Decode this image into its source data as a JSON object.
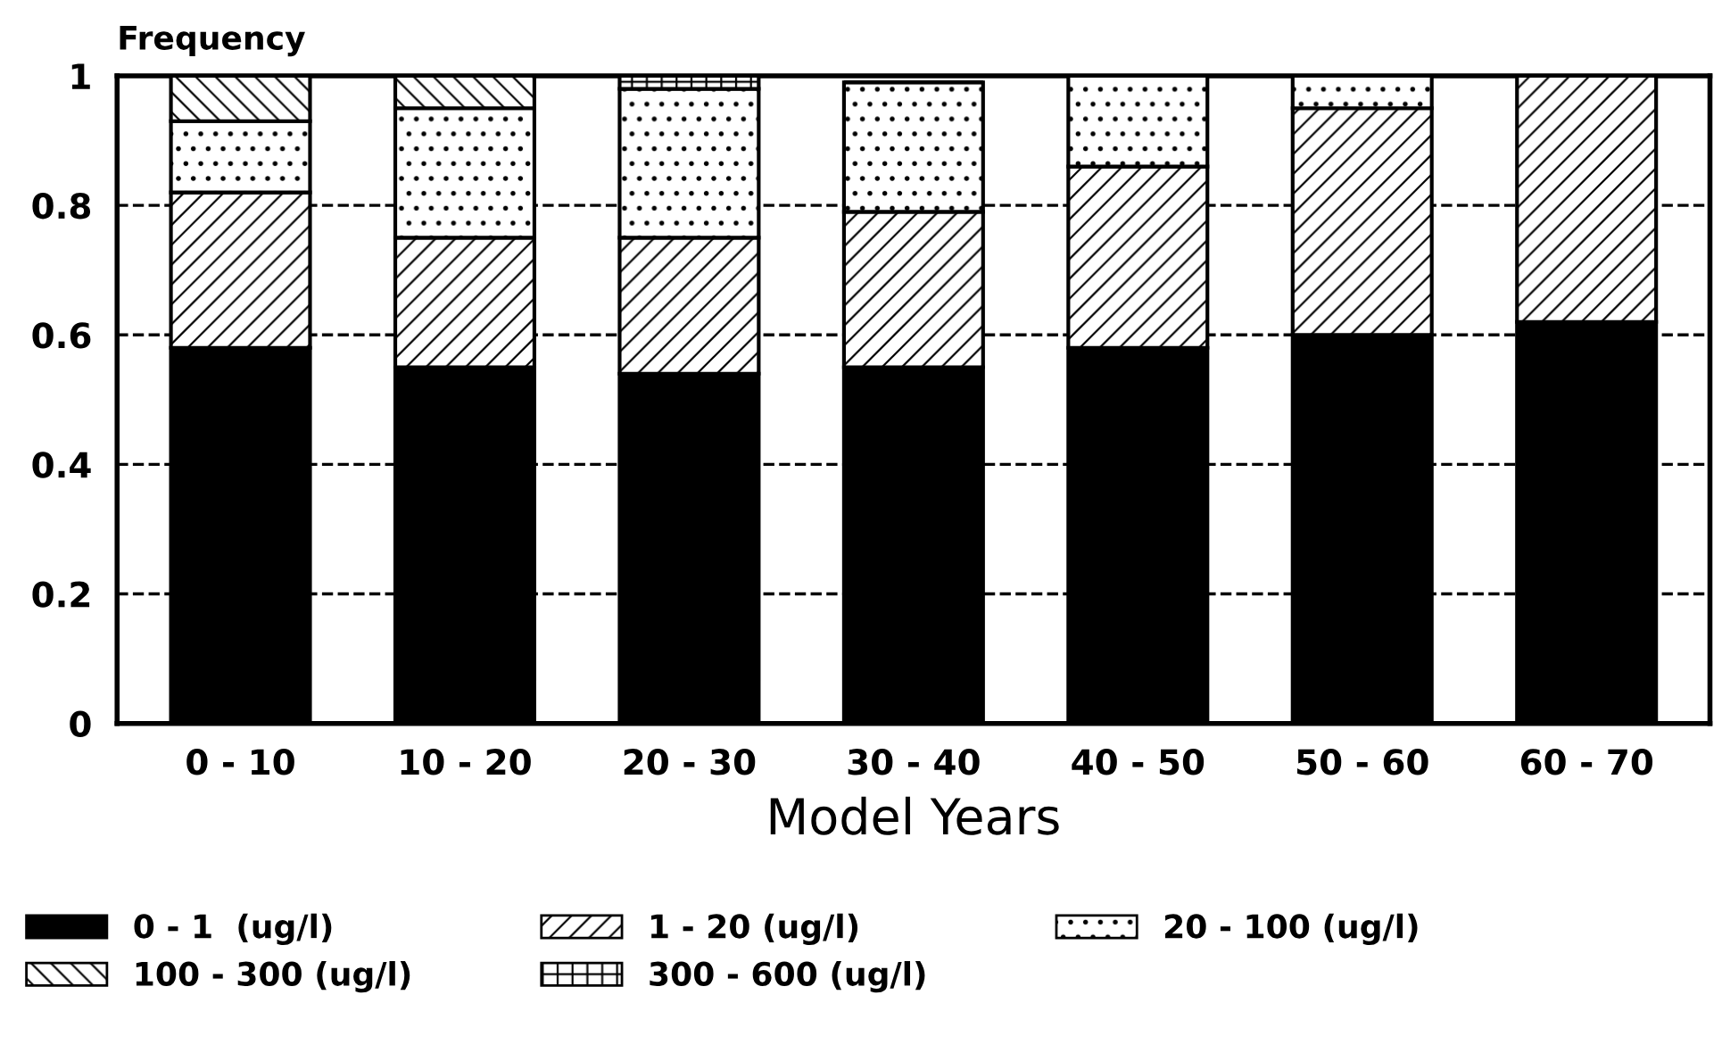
{
  "chart_data": {
    "type": "bar",
    "stacked": true,
    "ylabel": "Frequency",
    "xlabel": "Model Years",
    "categories": [
      "0 - 10",
      "10 - 20",
      "20 - 30",
      "30 - 40",
      "40 - 50",
      "50 - 60",
      "60 - 70"
    ],
    "series": [
      {
        "name": "0 - 1  (ug/l)",
        "color": "#000000",
        "values": [
          0.58,
          0.55,
          0.54,
          0.55,
          0.58,
          0.6,
          0.62
        ]
      },
      {
        "name": "1 - 20 (ug/l)",
        "color": "#000000",
        "values": [
          0.24,
          0.2,
          0.21,
          0.24,
          0.28,
          0.35,
          0.38
        ]
      },
      {
        "name": "20 - 100 (ug/l)",
        "color": "#000000",
        "values": [
          0.11,
          0.2,
          0.23,
          0.2,
          0.14,
          0.05,
          null
        ]
      },
      {
        "name": "100 - 300 (ug/l)",
        "color": "#000000",
        "values": [
          0.07,
          0.05,
          null,
          null,
          null,
          null,
          null
        ]
      },
      {
        "name": "300 - 600 (ug/l)",
        "color": "#000000",
        "values": [
          null,
          null,
          0.02,
          null,
          null,
          null,
          null
        ]
      }
    ],
    "ylim": [
      0,
      1
    ],
    "yticks": [
      0,
      0.2,
      0.4,
      0.6,
      0.8,
      1
    ],
    "grid": "y",
    "legend": "bottom"
  }
}
